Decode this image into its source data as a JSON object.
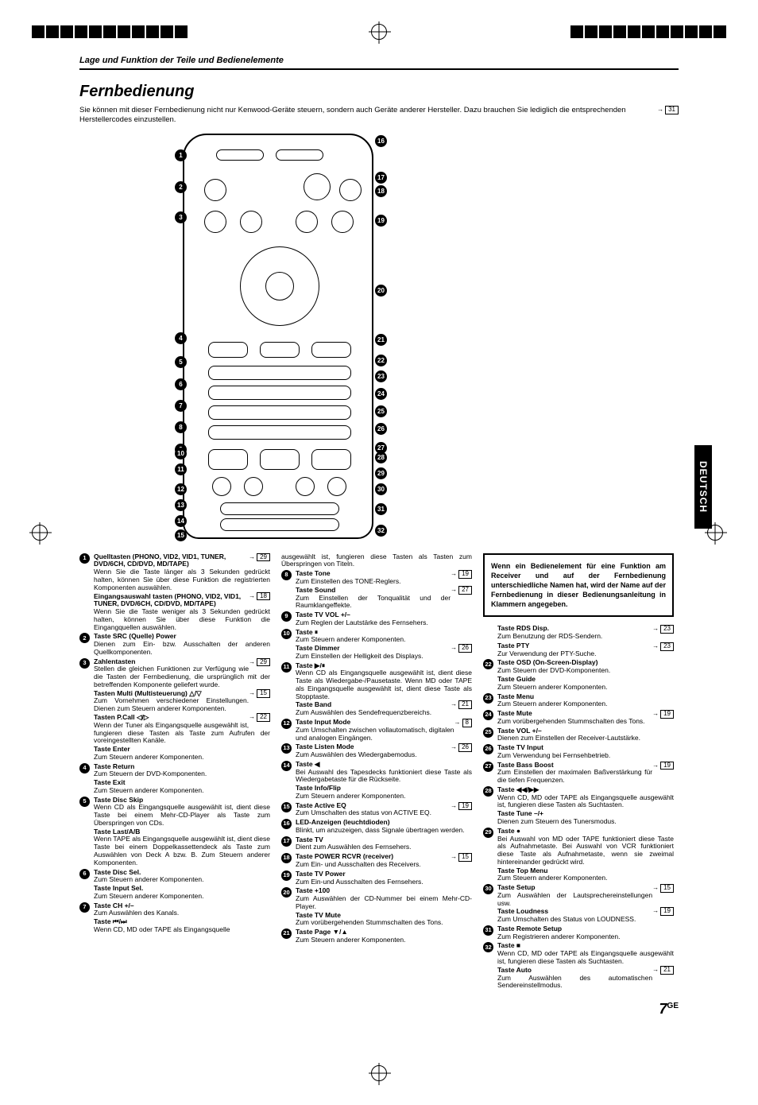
{
  "header": {
    "breadcrumb": "Lage und Funktion der Teile und Bedienelemente"
  },
  "title": "Fernbedienung",
  "intro": "Sie können mit dieser Fernbedienung nicht nur Kenwood-Geräte steuern, sondern auch Geräte anderer Hersteller. Dazu brauchen Sie lediglich die entsprechenden Herstellercodes einzustellen.",
  "intro_ref": "31",
  "note": "Wenn ein Bedienelement für eine Funktion am Receiver und auf der Fernbedienung unterschiedliche Namen hat, wird der Name auf der Fernbedienung in dieser Bedienungsanleitung in Klammern angegeben.",
  "lang_tab": "DEUTSCH",
  "page_number": "7",
  "page_suffix": "GE",
  "left_callouts": [
    "1",
    "2",
    "3",
    "4",
    "5",
    "6",
    "7",
    "8",
    "9",
    "10",
    "11",
    "12",
    "13",
    "14",
    "15"
  ],
  "right_callouts": [
    "16",
    "17",
    "18",
    "19",
    "20",
    "21",
    "22",
    "23",
    "24",
    "25",
    "26",
    "27",
    "28",
    "29",
    "30",
    "31",
    "32"
  ],
  "col1": [
    {
      "n": "1",
      "hdr": "Quelltasten (PHONO, VID2, VID1, TUNER, DVD/6CH, CD/DVD, MD/TAPE)",
      "ref": "29",
      "desc": "Wenn Sie die Taste länger als 3 Sekunden gedrückt halten, können Sie über diese Funktion die registrierten Komponenten auswählen.",
      "subs": [
        {
          "hdr": "Eingangsauswahl tasten (PHONO, VID2, VID1, TUNER, DVD/6CH, CD/DVD, MD/TAPE)",
          "ref": "18",
          "desc": "Wenn Sie die Taste weniger als 3 Sekunden gedrückt halten, können Sie über diese Funktion die Eingangquellen auswählen."
        }
      ]
    },
    {
      "n": "2",
      "hdr": "Taste SRC (Quelle) Power",
      "desc": "Dienen zum Ein- bzw. Ausschalten der anderen Quellkomponenten."
    },
    {
      "n": "3",
      "hdr": "Zahlentasten",
      "ref": "29",
      "desc": "Stellen die gleichen Funktionen zur Verfügung wie die Tasten der Fernbedienung, die ursprünglich mit der betreffenden Komponente geliefert wurde.",
      "subs": [
        {
          "hdr": "Tasten Multi (Multisteuerung) △/▽",
          "ref": "15",
          "desc": "Zum Vornehmen verschiedener Einstellungen. Dienen zum Steuern anderer Komponenten."
        },
        {
          "hdr": "Tasten P.Call ◁/▷",
          "ref": "22",
          "desc": "Wenn der Tuner als Eingangsquelle ausgewählt ist, fungieren diese Tasten als Taste zum Aufrufen der voreingestellten Kanäle."
        },
        {
          "hdr": "Taste Enter",
          "desc": "Zum Steuern anderer Komponenten."
        }
      ]
    },
    {
      "n": "4",
      "hdr": "Taste Return",
      "desc": "Zum Steuern der DVD-Komponenten.",
      "subs": [
        {
          "hdr": "Taste Exit",
          "desc": "Zum Steuern anderer Komponenten."
        }
      ]
    },
    {
      "n": "5",
      "hdr": "Taste Disc Skip",
      "desc": "Wenn CD als Eingangsquelle ausgewählt ist, dient diese Taste bei einem Mehr-CD-Player als Taste zum Überspringen von CDs.",
      "subs": [
        {
          "hdr": "Taste Last/A/B",
          "desc": "Wenn TAPE als Eingangsquelle ausgewählt ist, dient diese Taste bei einem Doppelkassettendeck als Taste zum Auswählen von Deck A bzw. B. Zum Steuern anderer Komponenten."
        }
      ]
    },
    {
      "n": "6",
      "hdr": "Taste Disc Sel.",
      "desc": "Zum Steuern anderer Komponenten.",
      "subs": [
        {
          "hdr": "Taste Input Sel.",
          "desc": "Zum Steuern anderer Komponenten."
        }
      ]
    },
    {
      "n": "7",
      "hdr": "Taste CH +/–",
      "desc": "Zum Auswählen des Kanals.",
      "subs": [
        {
          "hdr": "Taste ⏮/⏭",
          "desc": "Wenn CD, MD oder TAPE als Eingangsquelle"
        }
      ]
    }
  ],
  "col2_lead": "ausgewählt ist, fungieren diese Tasten als Tasten zum Überspringen von Titeln.",
  "col2": [
    {
      "n": "8",
      "hdr": "Taste Tone",
      "ref": "19",
      "desc": "Zum Einstellen des TONE-Reglers.",
      "subs": [
        {
          "hdr": "Taste Sound",
          "ref": "27",
          "desc": "Zum Einstellen der Tonqualität und der Raumklangeffekte."
        }
      ]
    },
    {
      "n": "9",
      "hdr": "Taste TV VOL +/–",
      "desc": "Zum Reglen der Lautstärke des Fernsehers."
    },
    {
      "n": "10",
      "hdr": "Taste ⏸",
      "desc": "Zum Steuern anderer Komponenten.",
      "subs": [
        {
          "hdr": "Taste Dimmer",
          "ref": "26",
          "desc": "Zum Einstellen der Helligkeit des Displays."
        }
      ]
    },
    {
      "n": "11",
      "hdr": "Taste ▶/⏸",
      "desc": "Wenn CD als Eingangsquelle ausgewählt ist, dient diese Taste als Wiedergabe-/Pausetaste. Wenn MD oder TAPE als Eingangsquelle ausgewählt ist, dient diese Taste als Stopptaste.",
      "subs": [
        {
          "hdr": "Taste Band",
          "ref": "21",
          "desc": "Zum Auswählen des Sendefrequenzbereichs."
        }
      ]
    },
    {
      "n": "12",
      "hdr": "Taste Input Mode",
      "ref": "8",
      "desc": "Zum Umschalten zwischen vollautomatisch, digitalen und analogen Eingängen."
    },
    {
      "n": "13",
      "hdr": "Taste Listen Mode",
      "ref": "26",
      "desc": "Zum Auswählen des Wiedergabemodus."
    },
    {
      "n": "14",
      "hdr": "Taste ◀",
      "desc": "Bei Auswahl des Tapesdecks funktioniert diese Taste als Wiedergabetaste für die Rückseite.",
      "subs": [
        {
          "hdr": "Taste Info/Flip",
          "desc": "Zum Steuern anderer Komponenten."
        }
      ]
    },
    {
      "n": "15",
      "hdr": "Taste Active EQ",
      "ref": "19",
      "desc": "Zum Umschalten des status von ACTIVE EQ."
    },
    {
      "n": "16",
      "hdr": "LED-Anzeigen (leuchtdioden)",
      "desc": "Blinkt, um anzuzeigen, dass Signale übertragen werden."
    },
    {
      "n": "17",
      "hdr": "Taste TV",
      "desc": "Dient zum Auswählen des Fernsehers."
    },
    {
      "n": "18",
      "hdr": "Taste POWER RCVR (receiver)",
      "ref": "15",
      "desc": "Zum Ein- und Ausschalten des Receivers."
    },
    {
      "n": "19",
      "hdr": "Taste TV Power",
      "desc": "Zum Ein-und Ausschalten des Fernsehers."
    },
    {
      "n": "20",
      "hdr": "Taste +100",
      "desc": "Zum Auswählen der CD-Nummer bei einem Mehr-CD-Player.",
      "subs": [
        {
          "hdr": "Taste TV Mute",
          "desc": "Zum vorübergehenden Stummschalten des Tons."
        }
      ]
    },
    {
      "n": "21",
      "hdr": "Taste Page ▼/▲",
      "desc": "Zum Steuern anderer Komponenten."
    }
  ],
  "col3": [
    {
      "hdr": "Taste RDS Disp.",
      "ref": "23",
      "desc": "Zum Benutzung der RDS-Sendern."
    },
    {
      "hdr": "Taste PTY",
      "ref": "23",
      "desc": "Zur Verwendung der PTY-Suche."
    },
    {
      "n": "22",
      "hdr": "Taste OSD (On-Screen-Display)",
      "desc": "Zum Steuern der DVD-Komponenten.",
      "subs": [
        {
          "hdr": "Taste Guide",
          "desc": "Zum Steuern anderer Komponenten."
        }
      ]
    },
    {
      "n": "23",
      "hdr": "Taste Menu",
      "desc": "Zum Steuern anderer Komponenten."
    },
    {
      "n": "24",
      "hdr": "Taste Mute",
      "ref": "19",
      "desc": "Zum vorübergehenden Stummschalten des Tons."
    },
    {
      "n": "25",
      "hdr": "Taste VOL +/–",
      "desc": "Dienen zum Einstellen der Receiver-Lautstärke."
    },
    {
      "n": "26",
      "hdr": "Taste TV Input",
      "desc": "Zum Verwendung bei Fernsehbetrieb."
    },
    {
      "n": "27",
      "hdr": "Taste Bass Boost",
      "ref": "19",
      "desc": "Zum Einstellen der maximalen Baßverstärkung für die tiefen Frequenzen."
    },
    {
      "n": "28",
      "hdr": "Taste ◀◀/▶▶",
      "desc": "Wenn CD, MD oder TAPE als Eingangsquelle ausgewählt ist, fungieren diese Tasten als Suchtasten.",
      "subs": [
        {
          "hdr": "Taste Tune –/+",
          "desc": "Dienen zum Steuern des Tunersmodus."
        }
      ]
    },
    {
      "n": "29",
      "hdr": "Taste ●",
      "desc": "Bei Auswahl von MD oder TAPE funktioniert diese Taste als Aufnahmetaste. Bei Auswahl von VCR funktioniert diese Taste als Aufnahmetaste, wenn sie zweimal hintereinander gedrückt wird.",
      "subs": [
        {
          "hdr": "Taste Top Menu",
          "desc": "Zum Steuern anderer Komponenten."
        }
      ]
    },
    {
      "n": "30",
      "hdr": "Taste Setup",
      "ref": "15",
      "desc": "Zum Auswählen der Lautsprechereinstellungen usw.",
      "subs": [
        {
          "hdr": "Taste Loudness",
          "ref": "19",
          "desc": "Zum Umschalten des Status von LOUDNESS."
        }
      ]
    },
    {
      "n": "31",
      "hdr": "Taste Remote Setup",
      "desc": "Zum Registrieren anderer Komponenten."
    },
    {
      "n": "32",
      "hdr": "Taste ■",
      "desc": "Wenn CD, MD oder TAPE als Eingangsquelle ausgewählt ist, fungieren diese Tasten als Suchtasten.",
      "subs": [
        {
          "hdr": "Taste Auto",
          "ref": "21",
          "desc": "Zum Auswählen des automatischen Sendereinstellmodus."
        }
      ]
    }
  ]
}
